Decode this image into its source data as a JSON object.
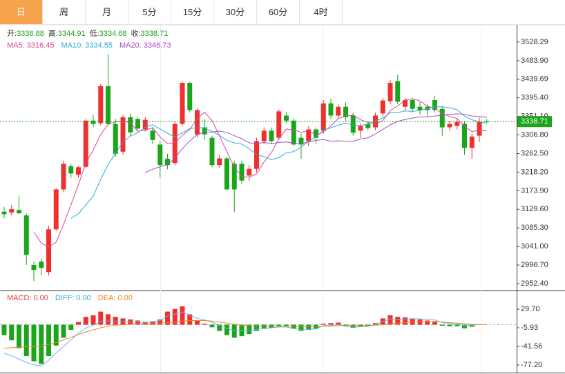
{
  "tabs": {
    "items": [
      "日",
      "周",
      "月",
      "5分",
      "15分",
      "30分",
      "60分",
      "4时"
    ],
    "active": 0
  },
  "chart_data": [
    {
      "type": "candlestick",
      "ohlc_labels": [
        "开:",
        "高:",
        "低:",
        "收:"
      ],
      "up_color": "#f0302e",
      "down_color": "#1aa51a",
      "open": [
        3124,
        3122,
        3128,
        3115,
        2997,
        3005,
        2980,
        3082,
        3177,
        3232,
        3212,
        3231,
        3341,
        3335,
        3423,
        3333,
        3267,
        3349,
        3345,
        3320,
        3317,
        3284,
        3250,
        3240,
        3333,
        3431,
        3308,
        3325,
        3300,
        3235,
        3251,
        3238,
        3238,
        3210,
        3226,
        3292,
        3317,
        3300,
        3353,
        3341,
        3300,
        3292,
        3320,
        3317,
        3382,
        3353,
        3374,
        3353,
        3317,
        3333,
        3325,
        3358,
        3387,
        3435,
        3374,
        3390,
        3374,
        3374,
        3390,
        3369,
        3325,
        3328,
        3333,
        3276,
        3305,
        3338.88
      ],
      "high": [
        3135,
        3140,
        3161,
        3120,
        3005,
        3012,
        3090,
        3180,
        3245,
        3238,
        3233,
        3345,
        3355,
        3428,
        3500,
        3345,
        3355,
        3358,
        3350,
        3350,
        3325,
        3292,
        3262,
        3340,
        3435,
        3433,
        3370,
        3345,
        3305,
        3260,
        3256,
        3245,
        3245,
        3235,
        3300,
        3325,
        3325,
        3368,
        3360,
        3345,
        3310,
        3328,
        3325,
        3390,
        3392,
        3380,
        3385,
        3360,
        3335,
        3340,
        3360,
        3395,
        3438,
        3450,
        3395,
        3395,
        3385,
        3380,
        3400,
        3375,
        3340,
        3345,
        3340,
        3310,
        3348,
        3344.91
      ],
      "low": [
        3108,
        3115,
        3118,
        2997,
        2959,
        2972,
        2972,
        3078,
        3170,
        3205,
        3205,
        3228,
        3325,
        3330,
        3330,
        3255,
        3260,
        3305,
        3318,
        3315,
        3285,
        3205,
        3225,
        3235,
        3328,
        3360,
        3300,
        3295,
        3230,
        3228,
        3175,
        3123,
        3190,
        3198,
        3218,
        3285,
        3285,
        3295,
        3335,
        3280,
        3250,
        3280,
        3285,
        3310,
        3345,
        3345,
        3340,
        3305,
        3300,
        3318,
        3318,
        3352,
        3380,
        3380,
        3365,
        3360,
        3355,
        3350,
        3360,
        3305,
        3318,
        3320,
        3260,
        3250,
        3290,
        3334.68
      ],
      "close": [
        3118,
        3130,
        3120,
        3021,
        2985,
        2990,
        3082,
        3177,
        3238,
        3215,
        3230,
        3341,
        3333,
        3423,
        3333,
        3262,
        3349,
        3313,
        3322,
        3343,
        3295,
        3235,
        3235,
        3333,
        3431,
        3366,
        3366,
        3308,
        3235,
        3251,
        3177,
        3177,
        3198,
        3226,
        3292,
        3317,
        3292,
        3363,
        3341,
        3284,
        3284,
        3320,
        3300,
        3382,
        3353,
        3374,
        3349,
        3312,
        3328,
        3323,
        3353,
        3389,
        3431,
        3386,
        3390,
        3369,
        3366,
        3366,
        3366,
        3325,
        3333,
        3338,
        3276,
        3303,
        3338,
        3338.71
      ],
      "series": [
        {
          "name": "MA5:",
          "color": "#d8489a",
          "values": [
            null,
            null,
            null,
            null,
            3075,
            3049,
            3040,
            3051,
            3094,
            3140,
            3188,
            3240,
            3271,
            3308,
            3332,
            3338,
            3340,
            3336,
            3316,
            3318,
            3324,
            3302,
            3286,
            3288,
            3306,
            3320,
            3346,
            3361,
            3341,
            3305,
            3267,
            3230,
            3208,
            3206,
            3214,
            3242,
            3265,
            3298,
            3321,
            3319,
            3313,
            3318,
            3306,
            3314,
            3328,
            3346,
            3352,
            3354,
            3343,
            3337,
            3333,
            3341,
            3365,
            3376,
            3390,
            3393,
            3388,
            3375,
            3371,
            3358,
            3351,
            3346,
            3328,
            3315,
            3318,
            3316.45
          ]
        },
        {
          "name": "MA10:",
          "color": "#2fa9d6",
          "values": [
            null,
            null,
            null,
            null,
            null,
            null,
            null,
            null,
            null,
            3108,
            3119,
            3140,
            3161,
            3201,
            3236,
            3263,
            3290,
            3304,
            3312,
            3325,
            3331,
            3321,
            3311,
            3302,
            3312,
            3322,
            3324,
            3324,
            3315,
            3306,
            3294,
            3288,
            3285,
            3274,
            3260,
            3255,
            3248,
            3253,
            3264,
            3267,
            3278,
            3292,
            3302,
            3318,
            3324,
            3330,
            3335,
            3330,
            3329,
            3333,
            3340,
            3347,
            3360,
            3360,
            3364,
            3363,
            3365,
            3370,
            3374,
            3374,
            3372,
            3367,
            3352,
            3343,
            3338,
            3334.55
          ]
        },
        {
          "name": "MA20:",
          "color": "#a64bc4",
          "values": [
            null,
            null,
            null,
            null,
            null,
            null,
            null,
            null,
            null,
            null,
            null,
            null,
            null,
            null,
            null,
            null,
            null,
            null,
            null,
            3217,
            3225,
            3231,
            3236,
            3252,
            3274,
            3293,
            3307,
            3314,
            3314,
            3316,
            3313,
            3305,
            3298,
            3288,
            3286,
            3289,
            3286,
            3289,
            3290,
            3287,
            3286,
            3290,
            3294,
            3296,
            3292,
            3293,
            3292,
            3292,
            3297,
            3300,
            3309,
            3320,
            3331,
            3339,
            3344,
            3347,
            3350,
            3350,
            3352,
            3354,
            3356,
            3357,
            3356,
            3352,
            3351,
            3348.73
          ]
        }
      ],
      "ylim": [
        2936,
        3566
      ],
      "yticks": [
        {
          "value": 3528.29,
          "label": "3528.29"
        },
        {
          "value": 3483.9,
          "label": "3483.90"
        },
        {
          "value": 3439.69,
          "label": "3439.69"
        },
        {
          "value": 3395.4,
          "label": "3395.40"
        },
        {
          "value": 3351.1,
          "label": "3351.10"
        },
        {
          "value": 3306.8,
          "label": "3306.80"
        },
        {
          "value": 3262.5,
          "label": "3262.50"
        },
        {
          "value": 3218.2,
          "label": "3218.20"
        },
        {
          "value": 3173.9,
          "label": "3173.90"
        },
        {
          "value": 3129.6,
          "label": "3129.60"
        },
        {
          "value": 3085.3,
          "label": "3085.30"
        },
        {
          "value": 3041,
          "label": "3041.00"
        },
        {
          "value": 2996.7,
          "label": "2996.70"
        },
        {
          "value": 2952.4,
          "label": "2952.40"
        }
      ]
    },
    {
      "type": "macd",
      "legend": [
        {
          "name": "MACD:",
          "color": "#e0403a",
          "value": 0,
          "label": "0.00"
        },
        {
          "name": "DIFF:",
          "color": "#2fa9d6",
          "value": 0,
          "label": "0.00"
        },
        {
          "name": "DEA:",
          "color": "#e8872a",
          "value": 0,
          "label": "0.00"
        }
      ],
      "up_color": "#f0302e",
      "down_color": "#1aa51a",
      "histogram": [
        -20,
        -30,
        -45,
        -60,
        -70,
        -75,
        -60,
        -40,
        -25,
        -10,
        5,
        15,
        18,
        25,
        20,
        15,
        12,
        10,
        8,
        5,
        6,
        10,
        25,
        30,
        35,
        20,
        8,
        2,
        -5,
        -12,
        -20,
        -25,
        -22,
        -18,
        -12,
        -8,
        -6,
        -3,
        -3,
        -8,
        -12,
        -10,
        -8,
        2,
        3,
        4,
        -2,
        -6,
        -4,
        -3,
        3,
        12,
        18,
        15,
        14,
        12,
        10,
        8,
        6,
        -2,
        -3,
        -3,
        -7,
        -4,
        0,
        0
      ],
      "series": [
        {
          "name": "DIFF",
          "color": "#5fb8e6",
          "values": [
            -55,
            -59,
            -66,
            -72,
            -77,
            -78.5,
            -68,
            -54,
            -41.5,
            -29,
            -16.5,
            -6.5,
            -1,
            6.5,
            7,
            6.5,
            6,
            6,
            6,
            4.5,
            6,
            8,
            16.5,
            20,
            24.5,
            18,
            12,
            9,
            4.5,
            -1,
            -7,
            -11.5,
            -12,
            -11,
            -9,
            -7,
            -6,
            -4.5,
            -4.5,
            -7,
            -10,
            -9,
            -8,
            -2,
            -1.5,
            0,
            -3,
            -5,
            -4,
            -3.5,
            0.5,
            6,
            11,
            10.5,
            11,
            11,
            11,
            10,
            9,
            4,
            2.5,
            1.5,
            -1.5,
            -1,
            0,
            0
          ]
        },
        {
          "name": "DEA",
          "color": "#e8872a",
          "values": [
            -45,
            -44,
            -43,
            -42,
            -42,
            -41,
            -38,
            -34,
            -29,
            -24,
            -19,
            -14,
            -10,
            -6,
            -3,
            -1,
            0,
            1,
            2,
            2,
            3,
            3,
            4,
            5,
            7,
            8,
            8,
            8,
            7,
            5,
            3,
            1,
            -1,
            -2,
            -3,
            -3,
            -3,
            -3,
            -3,
            -3,
            -4,
            -4,
            -4,
            -3,
            -3,
            -2,
            -2,
            -2,
            -2,
            -2,
            -1,
            0,
            2,
            3,
            4,
            5,
            6,
            6,
            6,
            5,
            4,
            3,
            2,
            1,
            0,
            0
          ]
        }
      ],
      "ylim": [
        -91.7,
        61.4
      ],
      "yticks": [
        {
          "value": 29.7,
          "label": "29.70"
        },
        {
          "value": -5.93,
          "label": "-5.93"
        },
        {
          "value": -41.56,
          "label": "-41.56"
        },
        {
          "value": -77.2,
          "label": "-77.20"
        }
      ]
    }
  ]
}
